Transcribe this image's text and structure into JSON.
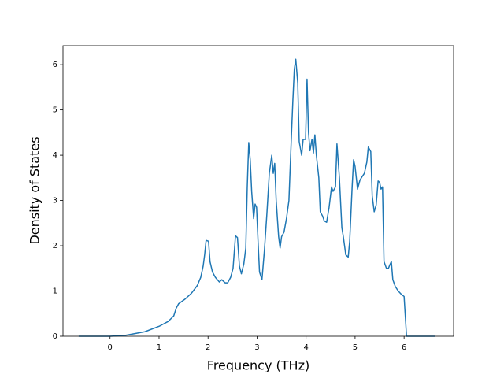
{
  "chart_data": {
    "type": "line",
    "x_label": "Frequency (THz)",
    "y_label": "Density of States",
    "x": [
      -0.64,
      0,
      0.31,
      0.71,
      1.0,
      1.19,
      1.3,
      1.35,
      1.4,
      1.53,
      1.66,
      1.78,
      1.85,
      1.9,
      1.93,
      1.96,
      2.01,
      2.04,
      2.09,
      2.15,
      2.23,
      2.28,
      2.35,
      2.4,
      2.46,
      2.51,
      2.56,
      2.6,
      2.64,
      2.68,
      2.73,
      2.77,
      2.8,
      2.83,
      2.86,
      2.89,
      2.93,
      2.96,
      2.99,
      3.02,
      3.05,
      3.1,
      3.15,
      3.2,
      3.25,
      3.3,
      3.33,
      3.36,
      3.39,
      3.44,
      3.47,
      3.5,
      3.55,
      3.6,
      3.65,
      3.7,
      3.73,
      3.76,
      3.79,
      3.83,
      3.86,
      3.91,
      3.94,
      3.99,
      4.02,
      4.05,
      4.08,
      4.12,
      4.15,
      4.18,
      4.21,
      4.26,
      4.29,
      4.34,
      4.37,
      4.42,
      4.47,
      4.52,
      4.55,
      4.6,
      4.63,
      4.68,
      4.73,
      4.76,
      4.81,
      4.86,
      4.89,
      4.94,
      4.97,
      5.0,
      5.05,
      5.1,
      5.14,
      5.19,
      5.24,
      5.27,
      5.32,
      5.35,
      5.39,
      5.43,
      5.47,
      5.5,
      5.53,
      5.56,
      5.59,
      5.64,
      5.68,
      5.71,
      5.74,
      5.77,
      5.82,
      5.88,
      5.95,
      6.0,
      6.05,
      6.64
    ],
    "series": [
      {
        "color": "#1f77b4",
        "values": [
          0,
          0,
          0.02,
          0.1,
          0.22,
          0.33,
          0.45,
          0.62,
          0.72,
          0.82,
          0.95,
          1.12,
          1.3,
          1.55,
          1.8,
          2.12,
          2.1,
          1.65,
          1.42,
          1.3,
          1.2,
          1.25,
          1.18,
          1.18,
          1.3,
          1.5,
          2.22,
          2.18,
          1.55,
          1.38,
          1.6,
          1.95,
          3.3,
          4.28,
          3.9,
          3.2,
          2.6,
          2.92,
          2.85,
          2.1,
          1.42,
          1.25,
          1.9,
          2.7,
          3.6,
          4.0,
          3.6,
          3.82,
          3.0,
          2.2,
          1.95,
          2.2,
          2.3,
          2.6,
          3.0,
          4.4,
          5.2,
          5.9,
          6.12,
          5.6,
          4.3,
          4.0,
          4.35,
          4.35,
          5.68,
          4.5,
          4.1,
          4.35,
          4.05,
          4.45,
          4.0,
          3.5,
          2.75,
          2.65,
          2.55,
          2.52,
          2.85,
          3.3,
          3.2,
          3.3,
          4.25,
          3.5,
          2.4,
          2.2,
          1.8,
          1.75,
          2.1,
          3.3,
          3.9,
          3.75,
          3.25,
          3.45,
          3.52,
          3.6,
          3.85,
          4.18,
          4.08,
          3.1,
          2.75,
          2.9,
          3.43,
          3.4,
          3.25,
          3.3,
          1.65,
          1.5,
          1.5,
          1.58,
          1.65,
          1.25,
          1.1,
          1.0,
          0.92,
          0.88,
          0,
          0
        ]
      }
    ],
    "xlim": [
      -0.96,
      7.01
    ],
    "ylim": [
      0,
      6.42
    ],
    "xticks": [
      0,
      1,
      2,
      3,
      4,
      5,
      6
    ],
    "yticks": [
      0,
      1,
      2,
      3,
      4,
      5,
      6
    ]
  }
}
